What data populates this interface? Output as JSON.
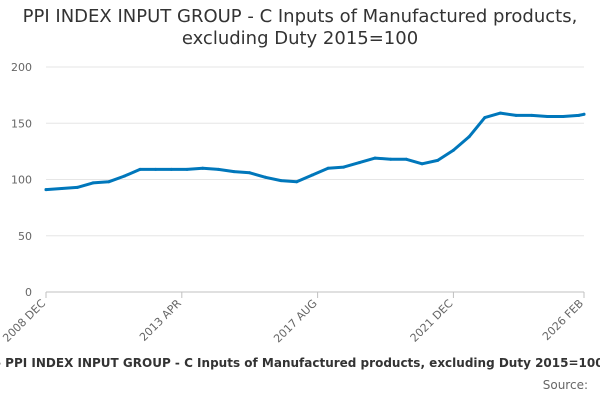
{
  "chart_data": {
    "type": "line",
    "title": "PPI INDEX INPUT GROUP - C Inputs of Manufactured products, excluding Duty 2015=100",
    "xlabel": "",
    "ylabel": "",
    "ylim": [
      0,
      200
    ],
    "yticks": [
      0,
      50,
      100,
      150,
      200
    ],
    "xticks": [
      "2008 DEC",
      "2013 APR",
      "2017 AUG",
      "2021 DEC",
      "2026 FEB"
    ],
    "grid": true,
    "legend": "bottom",
    "series": [
      {
        "name": "PPI INDEX INPUT GROUP - C Inputs of Manufactured products, excluding Duty 2015=100",
        "color": "#0077bb",
        "x": [
          "2008 DEC",
          "2009 JUN",
          "2009 DEC",
          "2010 JUN",
          "2010 DEC",
          "2011 JUN",
          "2011 DEC",
          "2012 JUN",
          "2012 DEC",
          "2013 JUN",
          "2013 DEC",
          "2014 JUN",
          "2014 DEC",
          "2015 JUN",
          "2015 DEC",
          "2016 JUN",
          "2016 DEC",
          "2017 JUN",
          "2017 DEC",
          "2018 JUN",
          "2018 DEC",
          "2019 JUN",
          "2019 DEC",
          "2020 JUN",
          "2020 DEC",
          "2021 JUN",
          "2021 DEC",
          "2022 JUN",
          "2022 DEC",
          "2023 JUN",
          "2023 DEC",
          "2024 JUN",
          "2024 DEC",
          "2025 JUN",
          "2025 DEC",
          "2026 FEB"
        ],
        "values": [
          91,
          92,
          93,
          97,
          98,
          103,
          109,
          109,
          109,
          109,
          110,
          109,
          107,
          106,
          102,
          99,
          98,
          104,
          110,
          111,
          115,
          119,
          118,
          118,
          114,
          117,
          126,
          138,
          155,
          159,
          157,
          157,
          156,
          156,
          157,
          158
        ]
      }
    ]
  },
  "footer": {
    "legend_text": "PPI INDEX INPUT GROUP - C Inputs of Manufactured products, excluding Duty 2015=100",
    "marker": "-",
    "source": "Source:"
  }
}
